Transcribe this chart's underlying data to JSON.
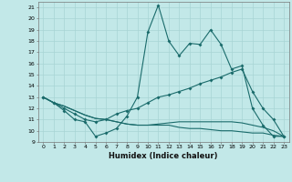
{
  "xlabel": "Humidex (Indice chaleur)",
  "bg_color": "#c2e8e8",
  "line_color": "#1a6b6b",
  "grid_color": "#a8d4d4",
  "xlim": [
    -0.5,
    23.5
  ],
  "ylim": [
    9,
    21.5
  ],
  "xticks": [
    0,
    1,
    2,
    3,
    4,
    5,
    6,
    7,
    8,
    9,
    10,
    11,
    12,
    13,
    14,
    15,
    16,
    17,
    18,
    19,
    20,
    21,
    22,
    23
  ],
  "yticks": [
    9,
    10,
    11,
    12,
    13,
    14,
    15,
    16,
    17,
    18,
    19,
    20,
    21
  ],
  "line1_x": [
    0,
    1,
    2,
    3,
    4,
    5,
    6,
    7,
    8,
    9,
    10,
    11,
    12,
    13,
    14,
    15,
    16,
    17,
    18,
    19,
    20,
    21,
    22,
    23
  ],
  "line1_y": [
    13.0,
    12.5,
    11.8,
    11.0,
    10.8,
    9.5,
    9.8,
    10.2,
    11.3,
    13.0,
    18.8,
    21.2,
    18.0,
    16.7,
    17.8,
    17.7,
    19.0,
    17.7,
    15.5,
    15.8,
    12.0,
    10.5,
    9.5,
    9.5
  ],
  "line2_x": [
    0,
    1,
    2,
    3,
    4,
    5,
    6,
    7,
    8,
    9,
    10,
    11,
    12,
    13,
    14,
    15,
    16,
    17,
    18,
    19,
    20,
    21,
    22,
    23
  ],
  "line2_y": [
    13.0,
    12.5,
    12.0,
    11.5,
    11.0,
    10.8,
    11.0,
    11.5,
    11.8,
    12.0,
    12.5,
    13.0,
    13.2,
    13.5,
    13.8,
    14.2,
    14.5,
    14.8,
    15.2,
    15.5,
    13.5,
    12.0,
    11.0,
    9.5
  ],
  "line3_x": [
    0,
    1,
    2,
    3,
    4,
    5,
    6,
    7,
    8,
    9,
    10,
    11,
    12,
    13,
    14,
    15,
    16,
    17,
    18,
    19,
    20,
    21,
    22,
    23
  ],
  "line3_y": [
    13.0,
    12.5,
    12.2,
    11.8,
    11.4,
    11.1,
    11.0,
    10.8,
    10.6,
    10.5,
    10.5,
    10.6,
    10.7,
    10.8,
    10.8,
    10.8,
    10.8,
    10.8,
    10.8,
    10.7,
    10.5,
    10.3,
    10.0,
    9.5
  ],
  "line4_x": [
    0,
    1,
    2,
    3,
    4,
    5,
    6,
    7,
    8,
    9,
    10,
    11,
    12,
    13,
    14,
    15,
    16,
    17,
    18,
    19,
    20,
    21,
    22,
    23
  ],
  "line4_y": [
    13.0,
    12.5,
    12.2,
    11.8,
    11.4,
    11.1,
    11.0,
    10.8,
    10.6,
    10.5,
    10.5,
    10.5,
    10.5,
    10.3,
    10.2,
    10.2,
    10.1,
    10.0,
    10.0,
    9.9,
    9.8,
    9.8,
    9.6,
    9.5
  ]
}
